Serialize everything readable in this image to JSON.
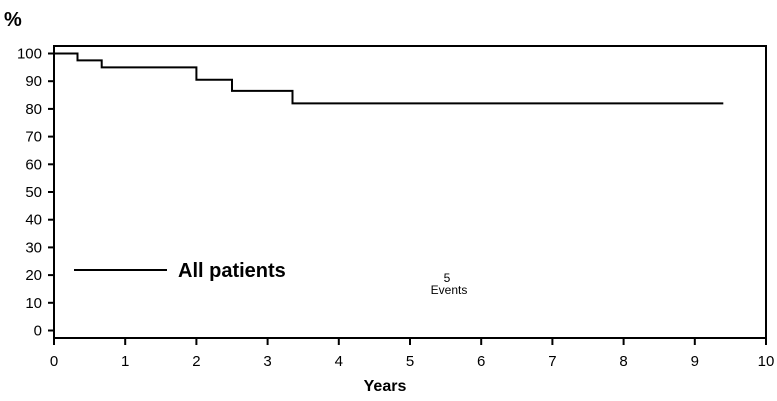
{
  "chart_data": {
    "type": "line",
    "title": "",
    "xlabel": "Years",
    "ylabel": "%",
    "xlim": [
      0,
      10
    ],
    "ylim": [
      0,
      100
    ],
    "x_ticks": [
      0,
      1,
      2,
      3,
      4,
      5,
      6,
      7,
      8,
      9,
      10
    ],
    "y_ticks": [
      0,
      10,
      20,
      30,
      40,
      50,
      60,
      70,
      80,
      90,
      100
    ],
    "grid": false,
    "legend": {
      "position": "lower-left",
      "entries": [
        "All patients"
      ]
    },
    "series": [
      {
        "name": "All patients",
        "step": true,
        "x": [
          0,
          0.33,
          0.67,
          2.0,
          2.5,
          3.35,
          9.4
        ],
        "y": [
          100,
          97.5,
          95,
          90.5,
          86.5,
          82,
          82
        ]
      }
    ],
    "annotations": [
      {
        "number": "5",
        "label": "Events",
        "x": 5.3,
        "y": 17
      }
    ]
  }
}
